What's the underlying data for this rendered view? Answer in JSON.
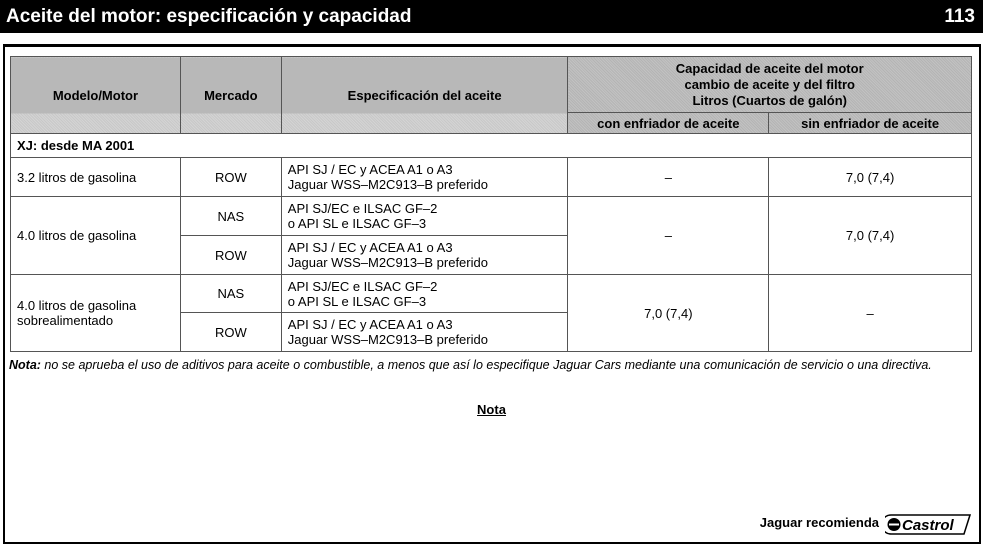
{
  "header": {
    "title": "Aceite del motor: especificación y capacidad",
    "page": "113"
  },
  "table": {
    "headers": {
      "model": "Modelo/Motor",
      "market": "Mercado",
      "spec": "Especificación del aceite",
      "capacity_l1": "Capacidad de aceite del motor",
      "capacity_l2": "cambio de aceite y del filtro",
      "capacity_l3": "Litros (Cuartos de galón)",
      "with_cooler": "con enfriador de aceite",
      "without_cooler": "sin enfriador de aceite"
    },
    "section": "XJ: desde MA 2001",
    "rows": [
      {
        "model": "3.2 litros de gasolina",
        "sub": [
          {
            "market": "ROW",
            "spec1": "API SJ / EC y ACEA A1 o A3",
            "spec2": "Jaguar WSS–M2C913–B preferido"
          }
        ],
        "with": "–",
        "without": "7,0 (7,4)"
      },
      {
        "model": "4.0 litros de gasolina",
        "sub": [
          {
            "market": "NAS",
            "spec1": "API SJ/EC e ILSAC GF–2",
            "spec2": "o API SL e ILSAC GF–3"
          },
          {
            "market": "ROW",
            "spec1": "API SJ / EC y ACEA A1 o A3",
            "spec2": "Jaguar WSS–M2C913–B preferido"
          }
        ],
        "with": "–",
        "without": "7,0 (7,4)"
      },
      {
        "model": "4.0 litros de gasolina sobrealimentado",
        "sub": [
          {
            "market": "NAS",
            "spec1": "API SJ/EC e ILSAC GF–2",
            "spec2": "o API SL e ILSAC GF–3"
          },
          {
            "market": "ROW",
            "spec1": "API SJ / EC y ACEA A1 o A3",
            "spec2": "Jaguar WSS–M2C913–B preferido"
          }
        ],
        "with": "7,0 (7,4)",
        "without": "–"
      }
    ]
  },
  "note": {
    "label": "Nota:",
    "text": " no se aprueba el uso de aditivos para aceite o combustible, a menos que así lo especifique Jaguar Cars mediante una comunicación de servicio o una directiva."
  },
  "nota_heading": "Nota",
  "footer": {
    "recommend": "Jaguar recomienda",
    "logo": "Castrol"
  }
}
